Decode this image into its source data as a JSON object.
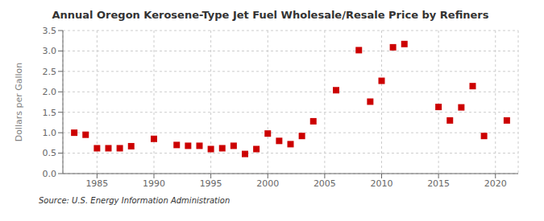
{
  "chart_data": {
    "type": "scatter",
    "title": "Annual Oregon Kerosene-Type Jet Fuel Wholesale/Resale Price by Refiners",
    "y_label": "Dollars per Gallon",
    "annotations": [
      "Source: U.S. Energy Information Administration"
    ],
    "x": [
      1983,
      1984,
      1985,
      1986,
      1987,
      1988,
      1990,
      1992,
      1993,
      1994,
      1995,
      1996,
      1997,
      1998,
      1999,
      2000,
      2001,
      2002,
      2003,
      2004,
      2006,
      2008,
      2009,
      2010,
      2011,
      2012,
      2015,
      2016,
      2017,
      2018,
      2019,
      2021
    ],
    "values": [
      1.0,
      0.95,
      0.62,
      0.62,
      0.62,
      0.67,
      0.85,
      0.7,
      0.68,
      0.68,
      0.6,
      0.62,
      0.68,
      0.48,
      0.6,
      0.98,
      0.8,
      0.72,
      0.92,
      1.28,
      2.04,
      3.02,
      1.76,
      2.27,
      3.09,
      3.17,
      1.63,
      1.3,
      1.62,
      2.14,
      0.92,
      1.3
    ],
    "color": "#cc0000",
    "marker": "square",
    "xlim": [
      1982,
      2022
    ],
    "xticks": [
      1985,
      1990,
      1995,
      2000,
      2005,
      2010,
      2015,
      2020
    ],
    "ylim": [
      0.0,
      3.5
    ],
    "yticks": [
      {
        "value": 0.0,
        "label": "0.0"
      },
      0.5,
      {
        "value": 1.0,
        "label": "1.0"
      },
      1.5,
      {
        "value": 2.0,
        "label": "2.0"
      },
      2.5,
      {
        "value": 3.0,
        "label": "3.0"
      },
      3.5
    ],
    "grid": true
  }
}
